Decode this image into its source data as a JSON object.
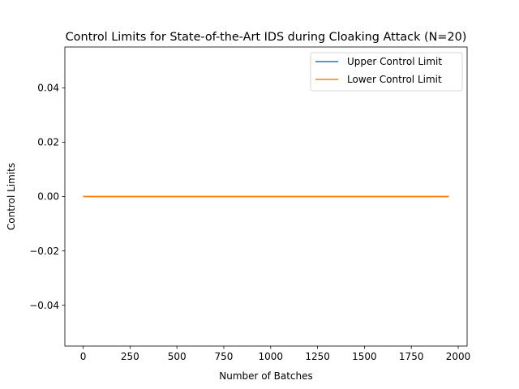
{
  "chart_data": {
    "type": "line",
    "title": "Control Limits for State-of-the-Art IDS during Cloaking Attack (N=20)",
    "xlabel": "Number of Batches",
    "ylabel": "Control Limits",
    "xlim": [
      -97.5,
      2047.5
    ],
    "ylim": [
      -0.055,
      0.055
    ],
    "xticks": [
      0,
      250,
      500,
      750,
      1000,
      1250,
      1500,
      1750,
      2000
    ],
    "xtick_labels": [
      "0",
      "250",
      "500",
      "750",
      "1000",
      "1250",
      "1500",
      "1750",
      "2000"
    ],
    "yticks": [
      -0.04,
      -0.02,
      0.0,
      0.02,
      0.04
    ],
    "ytick_labels": [
      "−0.04",
      "−0.02",
      "0.00",
      "0.02",
      "0.04"
    ],
    "grid": false,
    "legend_position": "upper-right",
    "series": [
      {
        "name": "Upper Control Limit",
        "color": "#1f77b4",
        "x": [
          0,
          1950
        ],
        "y": [
          0,
          0
        ]
      },
      {
        "name": "Lower Control Limit",
        "color": "#ff7f0e",
        "x": [
          0,
          1950
        ],
        "y": [
          0,
          0
        ]
      }
    ]
  }
}
